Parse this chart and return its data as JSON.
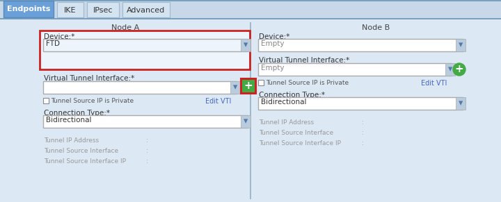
{
  "bg_color": "#dce9f5",
  "tab_bar_bg": "#c8d8e8",
  "tab_active_bg": "#6a9fd8",
  "tab_active_text": "#ffffff",
  "tab_inactive_text": "#333333",
  "tabs": [
    "Endpoints",
    "IKE",
    "IPsec",
    "Advanced"
  ],
  "active_tab": 0,
  "panel_bg": "#dce9f5",
  "divider_color": "#a0b8cc",
  "node_a_title": "Node A",
  "node_b_title": "Node B",
  "field_bg": "#ffffff",
  "field_border": "#aaaaaa",
  "field_border_active": "#cc0000",
  "dropdown_arrow_color": "#5577aa",
  "label_color": "#333333",
  "gray_label_color": "#999999",
  "link_color": "#4466cc",
  "checkbox_border": "#888888",
  "green_button_color": "#44aa44",
  "red_outline_color": "#cc2222",
  "top_border_color": "#7aa0c0",
  "tab_border_color": "#a0b8cc",
  "node_a_fields": {
    "device_label": "Device:*",
    "device_value": "FTD",
    "vti_label": "Virtual Tunnel Interface:*",
    "vti_value": "",
    "connection_label": "Connection Type:*",
    "connection_value": "Bidirectional",
    "tunnel_ip": "Tunnel IP Address",
    "tunnel_src_if": "Tunnel Source Interface",
    "tunnel_src_ip": "Tunnel Source Interface IP",
    "edit_vti": "Edit VTI",
    "checkbox_label": "Tunnel Source IP is Private"
  },
  "node_b_fields": {
    "device_label": "Device:*",
    "device_value": "Empty",
    "vti_label": "Virtual Tunnel Interface:*",
    "vti_value": "Empty",
    "connection_label": "Connection Type:*",
    "connection_value": "Bidirectional",
    "tunnel_ip": "Tunnel IP Address",
    "tunnel_src_if": "Tunnel Source Interface",
    "tunnel_src_ip": "Tunnel Source Interface IP",
    "edit_vti": "Edit VTI",
    "checkbox_label": "Tunnel Source IP is Private"
  }
}
